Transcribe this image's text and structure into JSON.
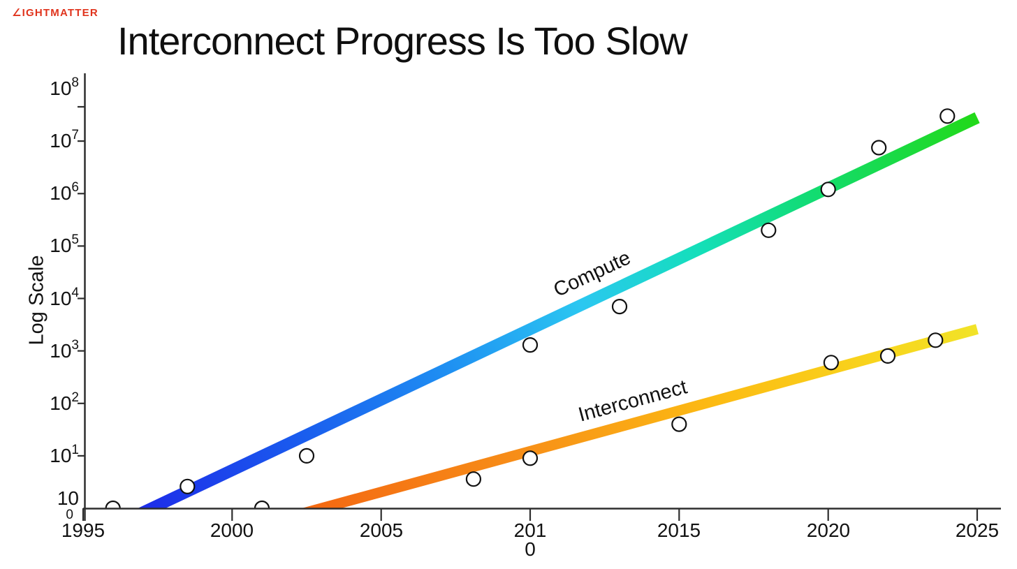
{
  "logo": {
    "text": "∠IGHTMATTER",
    "color": "#E0331C"
  },
  "chart_data": {
    "type": "scatter",
    "title": "Interconnect Progress Is Too Slow",
    "ylabel": "Log Scale",
    "grid": false,
    "legend": "inline-rotated-labels",
    "x_axis": {
      "min_year": 1995,
      "max_year": 2025.8,
      "ticks": [
        {
          "year": 1995,
          "lines": [
            "1995"
          ]
        },
        {
          "year": 2000,
          "lines": [
            "2000"
          ]
        },
        {
          "year": 2005,
          "lines": [
            "2005"
          ]
        },
        {
          "year": 2010,
          "lines": [
            "201",
            "0"
          ]
        },
        {
          "year": 2015,
          "lines": [
            "2015"
          ]
        },
        {
          "year": 2020,
          "lines": [
            "2020"
          ]
        },
        {
          "year": 2025,
          "lines": [
            "2025"
          ]
        }
      ]
    },
    "y_axis": {
      "scale": "log",
      "min": 1,
      "max": 100000000,
      "tick_exponents": [
        8,
        7,
        6,
        5,
        4,
        3,
        2,
        1,
        0
      ],
      "wrapped_exponent": 0
    },
    "series": [
      {
        "name": "Compute",
        "label_angle_deg": -25,
        "gradient": [
          {
            "offset": 0,
            "color": "#1D2FE9"
          },
          {
            "offset": 0.18,
            "color": "#1A5CEE"
          },
          {
            "offset": 0.36,
            "color": "#1F90F2"
          },
          {
            "offset": 0.52,
            "color": "#2BC7F1"
          },
          {
            "offset": 0.66,
            "color": "#14DFBB"
          },
          {
            "offset": 0.8,
            "color": "#12DC72"
          },
          {
            "offset": 1,
            "color": "#22D918"
          }
        ],
        "trend": {
          "start_year": 1997.3,
          "start_value": 1,
          "end_year": 2025,
          "end_value": 28000000
        },
        "points": [
          {
            "year": 1996,
            "value": 1
          },
          {
            "year": 1998.5,
            "value": 2.6
          },
          {
            "year": 2002.5,
            "value": 10
          },
          {
            "year": 2010,
            "value": 1300
          },
          {
            "year": 2013,
            "value": 7000
          },
          {
            "year": 2018,
            "value": 200000
          },
          {
            "year": 2020,
            "value": 1200000
          },
          {
            "year": 2021.7,
            "value": 7500000
          },
          {
            "year": 2024,
            "value": 30000000
          }
        ]
      },
      {
        "name": "Interconnect",
        "label_angle_deg": -15,
        "gradient": [
          {
            "offset": 0,
            "color": "#F46A12"
          },
          {
            "offset": 0.3,
            "color": "#F78E18"
          },
          {
            "offset": 0.6,
            "color": "#FCBB13"
          },
          {
            "offset": 0.85,
            "color": "#F8D51D"
          },
          {
            "offset": 1,
            "color": "#F1E328"
          }
        ],
        "trend": {
          "start_year": 2003,
          "start_value": 1,
          "end_year": 2025,
          "end_value": 2600
        },
        "points": [
          {
            "year": 2001,
            "value": 1
          },
          {
            "year": 2008.1,
            "value": 3.6
          },
          {
            "year": 2010,
            "value": 9
          },
          {
            "year": 2015,
            "value": 40
          },
          {
            "year": 2020.1,
            "value": 600
          },
          {
            "year": 2022,
            "value": 800
          },
          {
            "year": 2023.6,
            "value": 1600
          }
        ]
      }
    ],
    "marker": {
      "fill": "#FFFFFF",
      "stroke": "#111111",
      "radius": 10
    },
    "axis_color": "#2E2E2E",
    "text_color": "#121212"
  }
}
